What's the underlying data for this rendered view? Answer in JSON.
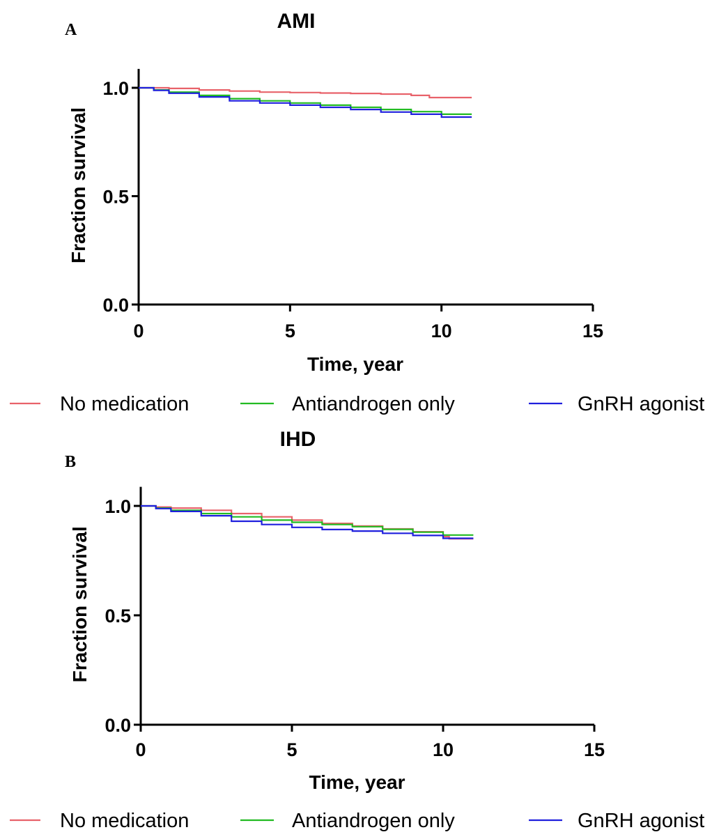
{
  "colors": {
    "no_medication": "#e8626a",
    "antiandrogen_only": "#22bb22",
    "gnrh_agonist": "#1f1fdd"
  },
  "chart_data": [
    {
      "type": "line",
      "panel": "A",
      "title": "AMI",
      "xlabel": "Time, year",
      "ylabel": "Fraction survival",
      "xlim": [
        0,
        15
      ],
      "ylim": [
        0,
        1.1
      ],
      "xticks": [
        0,
        5,
        10,
        15
      ],
      "yticks": [
        0.0,
        0.5,
        1.0
      ],
      "xtick_labels": [
        "0",
        "5",
        "10",
        "15"
      ],
      "ytick_labels": [
        "0.0",
        "0.5",
        "1.0"
      ],
      "grid": false,
      "legend_position": "bottom",
      "series": [
        {
          "name": "No medication",
          "color_key": "no_medication",
          "points": [
            [
              0,
              1.0
            ],
            [
              0.5,
              1.0
            ],
            [
              1,
              0.997
            ],
            [
              2,
              0.99
            ],
            [
              3,
              0.985
            ],
            [
              4,
              0.98
            ],
            [
              5,
              0.978
            ],
            [
              6,
              0.976
            ],
            [
              7,
              0.974
            ],
            [
              8,
              0.971
            ],
            [
              9,
              0.965
            ],
            [
              9.6,
              0.955
            ],
            [
              11,
              0.955
            ]
          ]
        },
        {
          "name": "Antiandrogen only",
          "color_key": "antiandrogen_only",
          "points": [
            [
              0,
              1.0
            ],
            [
              0.5,
              0.99
            ],
            [
              1,
              0.98
            ],
            [
              2,
              0.965
            ],
            [
              3,
              0.95
            ],
            [
              4,
              0.94
            ],
            [
              5,
              0.93
            ],
            [
              6,
              0.92
            ],
            [
              7,
              0.91
            ],
            [
              8,
              0.9
            ],
            [
              9,
              0.89
            ],
            [
              10,
              0.878
            ],
            [
              11,
              0.878
            ]
          ]
        },
        {
          "name": "GnRH agonist",
          "color_key": "gnrh_agonist",
          "points": [
            [
              0,
              1.0
            ],
            [
              0.5,
              0.988
            ],
            [
              1,
              0.975
            ],
            [
              2,
              0.958
            ],
            [
              3,
              0.94
            ],
            [
              4,
              0.93
            ],
            [
              5,
              0.92
            ],
            [
              6,
              0.91
            ],
            [
              7,
              0.9
            ],
            [
              8,
              0.888
            ],
            [
              9,
              0.878
            ],
            [
              10,
              0.865
            ],
            [
              11,
              0.865
            ]
          ]
        }
      ]
    },
    {
      "type": "line",
      "panel": "B",
      "title": "IHD",
      "xlabel": "Time, year",
      "ylabel": "Fraction survival",
      "xlim": [
        0,
        15
      ],
      "ylim": [
        0,
        1.1
      ],
      "xticks": [
        0,
        5,
        10,
        15
      ],
      "yticks": [
        0.0,
        0.5,
        1.0
      ],
      "xtick_labels": [
        "0",
        "5",
        "10",
        "15"
      ],
      "ytick_labels": [
        "0.0",
        "0.5",
        "1.0"
      ],
      "grid": false,
      "legend_position": "bottom",
      "series": [
        {
          "name": "No medication",
          "color_key": "no_medication",
          "points": [
            [
              0,
              1.0
            ],
            [
              0.5,
              0.995
            ],
            [
              1,
              0.99
            ],
            [
              2,
              0.98
            ],
            [
              3,
              0.965
            ],
            [
              4,
              0.95
            ],
            [
              5,
              0.935
            ],
            [
              6,
              0.92
            ],
            [
              7,
              0.908
            ],
            [
              8,
              0.895
            ],
            [
              9,
              0.882
            ],
            [
              10,
              0.86
            ],
            [
              10.2,
              0.85
            ],
            [
              11,
              0.85
            ]
          ]
        },
        {
          "name": "Antiandrogen only",
          "color_key": "antiandrogen_only",
          "points": [
            [
              0,
              1.0
            ],
            [
              0.5,
              0.99
            ],
            [
              1,
              0.98
            ],
            [
              2,
              0.965
            ],
            [
              3,
              0.95
            ],
            [
              4,
              0.935
            ],
            [
              5,
              0.925
            ],
            [
              6,
              0.915
            ],
            [
              7,
              0.905
            ],
            [
              8,
              0.893
            ],
            [
              9,
              0.88
            ],
            [
              10,
              0.867
            ],
            [
              11,
              0.867
            ]
          ]
        },
        {
          "name": "GnRH agonist",
          "color_key": "gnrh_agonist",
          "points": [
            [
              0,
              1.0
            ],
            [
              0.5,
              0.988
            ],
            [
              1,
              0.975
            ],
            [
              2,
              0.955
            ],
            [
              3,
              0.93
            ],
            [
              4,
              0.915
            ],
            [
              5,
              0.902
            ],
            [
              6,
              0.892
            ],
            [
              7,
              0.885
            ],
            [
              8,
              0.875
            ],
            [
              9,
              0.865
            ],
            [
              10,
              0.852
            ],
            [
              11,
              0.852
            ]
          ]
        }
      ]
    }
  ]
}
